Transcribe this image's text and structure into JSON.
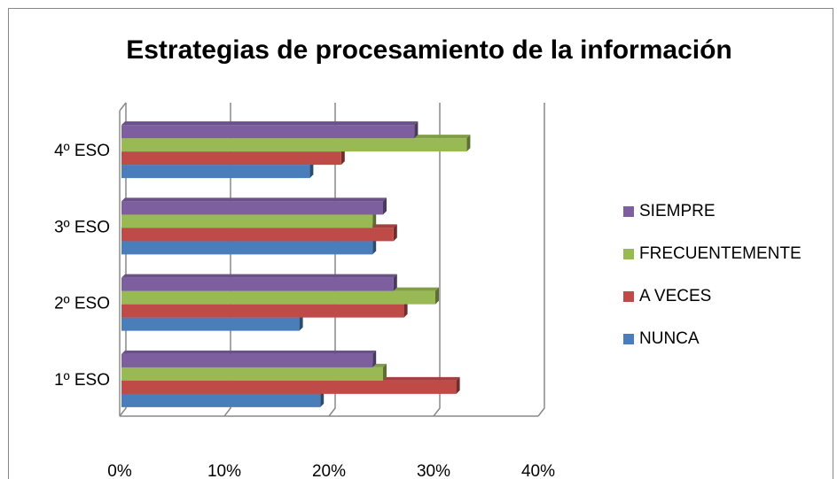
{
  "chart_data": {
    "type": "bar",
    "orientation": "horizontal",
    "three_d": true,
    "title": "Estrategias de procesamiento de la información",
    "categories": [
      "1º ESO",
      "2º ESO",
      "3º ESO",
      "4º ESO"
    ],
    "series": [
      {
        "name": "NUNCA",
        "color": "#4a7ebb",
        "values": [
          19,
          17,
          24,
          18
        ]
      },
      {
        "name": "A VECES",
        "color": "#be4b48",
        "values": [
          32,
          27,
          26,
          21
        ]
      },
      {
        "name": "FRECUENTEMENTE",
        "color": "#98b954",
        "values": [
          25,
          30,
          24,
          33
        ]
      },
      {
        "name": "SIEMPRE",
        "color": "#7d5fa0",
        "values": [
          24,
          26,
          25,
          28
        ]
      }
    ],
    "xlim": [
      0,
      40
    ],
    "xticks": [
      {
        "value": 0,
        "label": "0%"
      },
      {
        "value": 10,
        "label": "10%"
      },
      {
        "value": 20,
        "label": "20%"
      },
      {
        "value": 30,
        "label": "30%"
      },
      {
        "value": 40,
        "label": "40%"
      }
    ],
    "grid": true,
    "legend": "right"
  }
}
